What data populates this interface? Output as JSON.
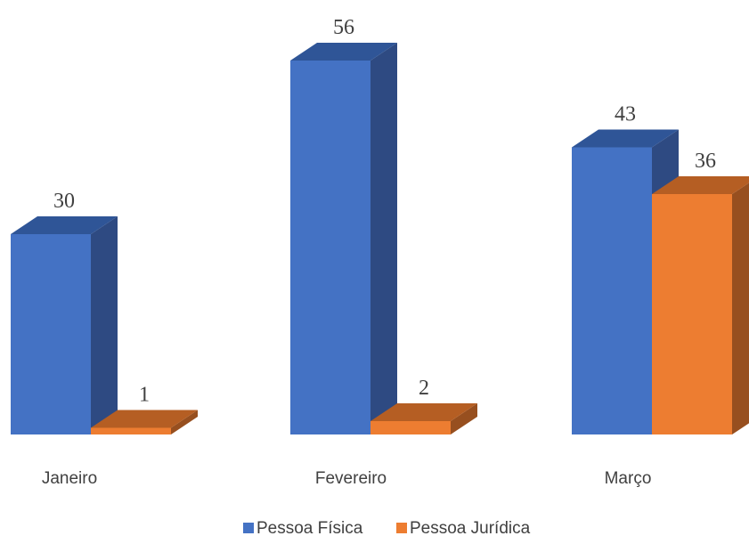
{
  "chart_data": {
    "type": "bar",
    "style": "3d-clustered-column",
    "categories": [
      "Janeiro",
      "Fevereiro",
      "Março"
    ],
    "series": [
      {
        "name": "Pessoa Física",
        "values": [
          30,
          56,
          43
        ],
        "color": "#4472C4",
        "side_color": "#2E4A82",
        "top_color": "#2F5597"
      },
      {
        "name": "Pessoa Jurídica",
        "values": [
          1,
          2,
          36
        ],
        "color": "#ED7D31",
        "side_color": "#974F1F",
        "top_color": "#B55E23"
      }
    ],
    "title": "",
    "xlabel": "",
    "ylabel": "",
    "ylim": [
      0,
      60
    ],
    "grid": false,
    "legend_position": "bottom",
    "data_labels": true
  }
}
